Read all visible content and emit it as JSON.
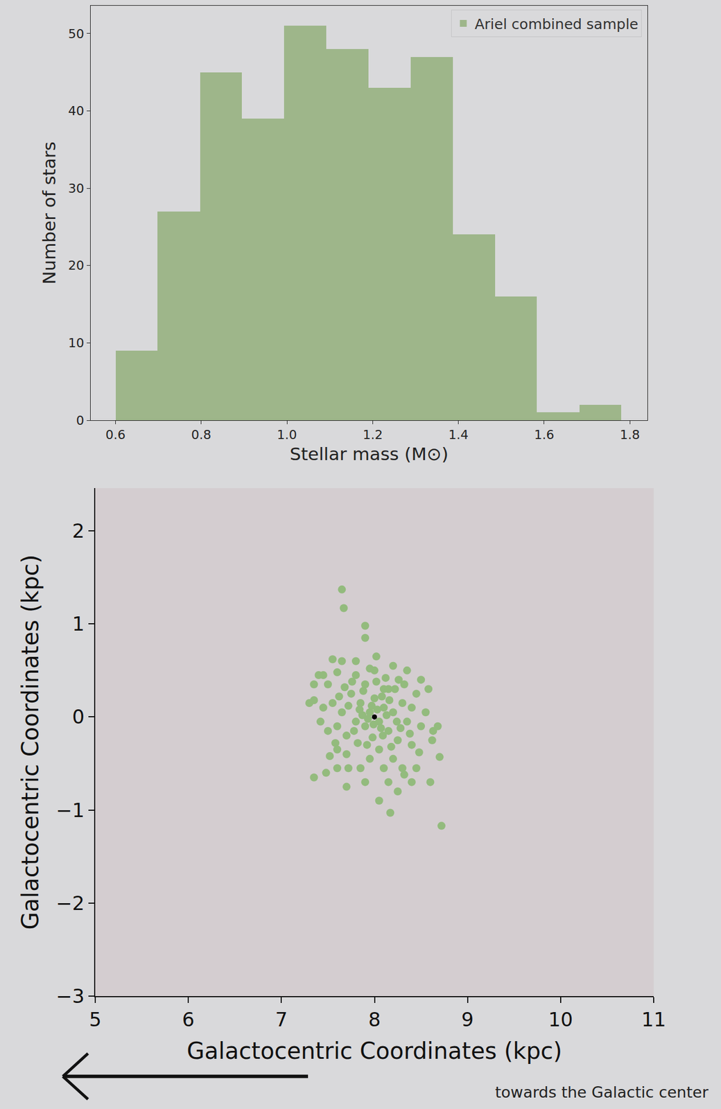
{
  "chart_data": [
    {
      "type": "histogram",
      "bins": [
        0.6,
        0.698,
        0.797,
        0.895,
        0.993,
        1.092,
        1.19,
        1.288,
        1.387,
        1.485,
        1.583,
        1.682,
        1.78
      ],
      "values": [
        9,
        27,
        45,
        39,
        51,
        48,
        43,
        47,
        24,
        16,
        1,
        2
      ],
      "name": "Ariel combined sample",
      "color": "#9eb68a",
      "xlabel": "Stellar mass (M⊙)",
      "ylabel": "Number of stars",
      "xlim": [
        0.542,
        1.841
      ],
      "ylim": [
        0,
        53.6
      ],
      "xticks": [
        0.6,
        0.8,
        {
          "value": 1,
          "label": "1.0"
        },
        1.2,
        1.4,
        1.6,
        1.8
      ],
      "yticks": [
        0,
        10,
        20,
        30,
        40,
        50
      ],
      "legend": "upper right",
      "grid": false
    },
    {
      "type": "scatter",
      "xlabel": "Galactocentric Coordinates (kpc)",
      "ylabel": "Galactocentric Coordinates (kpc)",
      "annotation": "towards the Galactic center",
      "xlim": [
        5,
        11
      ],
      "ylim": [
        -3,
        2.46
      ],
      "xticks": [
        5,
        6,
        7,
        8,
        9,
        10,
        11
      ],
      "yticks": [
        {
          "value": -3,
          "label": "−3"
        },
        {
          "value": -2,
          "label": "−2"
        },
        {
          "value": -1,
          "label": "−1"
        },
        0,
        1,
        2
      ],
      "grid": false,
      "series": [
        {
          "color": "#93bb7d",
          "marker": "circle",
          "x": [
            7.95,
            8.05,
            7.9,
            8.1,
            7.85,
            8.15,
            8.0,
            7.98,
            8.2,
            7.8,
            7.75,
            8.25,
            8.3,
            7.7,
            8.1,
            7.9,
            8.05,
            8.35,
            7.65,
            7.6,
            8.4,
            8.4,
            7.55,
            7.5,
            8.45,
            7.8,
            8.0,
            7.95,
            8.2,
            7.7,
            8.5,
            7.45,
            8.12,
            7.88,
            8.22,
            7.72,
            8.28,
            7.92,
            8.08,
            7.82,
            8.18,
            7.68,
            8.32,
            7.58,
            8.38,
            7.62,
            8.02,
            7.97,
            8.07,
            7.93,
            8.13,
            7.87,
            8.03,
            7.99,
            8.09,
            7.84,
            8.16,
            7.78,
            8.24,
            7.76,
            8.26,
            7.5,
            8.55,
            8.48,
            7.52,
            7.42,
            8.58,
            7.6,
            8.1,
            7.85,
            7.95,
            8.3,
            7.72,
            8.35,
            7.6,
            8.02,
            7.8,
            8.2,
            7.3,
            8.62,
            7.48,
            8.4,
            7.55,
            8.15,
            7.9,
            8.25,
            7.7,
            8.5,
            7.35,
            8.45,
            7.65,
            7.67,
            7.9,
            7.65,
            7.4,
            7.35,
            8.72,
            8.17,
            8.6,
            8.7,
            8.63,
            7.6,
            7.35,
            8.05,
            8.32,
            7.9,
            8.15,
            7.45,
            8.68
          ],
          "values": [
            0.05,
            -0.05,
            -0.1,
            0.1,
            0.15,
            -0.15,
            0.2,
            -0.22,
            0.05,
            -0.05,
            0.25,
            -0.25,
            0.15,
            -0.2,
            0.3,
            0.35,
            -0.35,
            -0.05,
            0.05,
            -0.1,
            0.1,
            -0.3,
            0.15,
            -0.15,
            0.25,
            0.45,
            0.5,
            -0.45,
            -0.45,
            -0.4,
            -0.1,
            0.1,
            0.42,
            0.28,
            0.3,
            0.12,
            -0.12,
            -0.3,
            0.22,
            -0.28,
            -0.32,
            0.32,
            0.35,
            -0.28,
            -0.18,
            0.22,
            0.38,
            0.12,
            -0.12,
            -0.02,
            0.02,
            0.02,
            0.08,
            -0.08,
            -0.2,
            0.08,
            0.18,
            -0.15,
            -0.05,
            0.38,
            0.4,
            0.35,
            0.05,
            -0.38,
            -0.42,
            -0.05,
            0.3,
            -0.35,
            -0.55,
            -0.55,
            0.52,
            -0.55,
            -0.55,
            0.5,
            0.48,
            0.65,
            0.6,
            0.55,
            0.15,
            -0.25,
            -0.6,
            -0.7,
            0.62,
            -0.7,
            -0.7,
            -0.8,
            -0.75,
            0.4,
            0.35,
            -0.55,
            1.37,
            1.17,
            0.98,
            0.6,
            0.45,
            0.18,
            -1.17,
            -1.03,
            -0.7,
            -0.43,
            -0.15,
            -0.55,
            -0.65,
            -0.9,
            -0.62,
            0.85,
            0.3,
            0.45,
            -0.1
          ]
        },
        {
          "color": "#000000",
          "marker": "circle",
          "x": [
            8
          ],
          "values": [
            0
          ]
        }
      ]
    }
  ]
}
